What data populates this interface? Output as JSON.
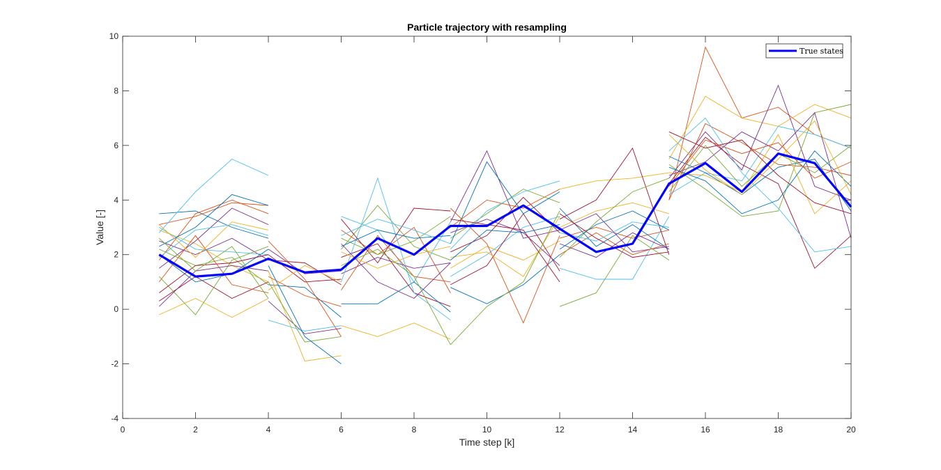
{
  "chart_data": {
    "type": "line",
    "title": "Particle trajectory with resampling",
    "xlabel": "Time step [k]",
    "ylabel": "Value [-]",
    "xlim": [
      0,
      20
    ],
    "ylim": [
      -4,
      10
    ],
    "xticks": [
      0,
      2,
      4,
      6,
      8,
      10,
      12,
      14,
      16,
      18,
      20
    ],
    "yticks": [
      -4,
      -2,
      0,
      2,
      4,
      6,
      8,
      10
    ],
    "grid": false,
    "box": true,
    "legend": {
      "position": "top-right",
      "entries": [
        "True states"
      ]
    },
    "series": [
      {
        "name": "True states",
        "color": "#0000ff",
        "x": [
          1,
          2,
          3,
          4,
          5,
          6,
          7,
          8,
          9,
          10,
          11,
          12,
          13,
          14,
          15,
          16,
          17,
          18,
          19,
          20
        ],
        "y": [
          2.0,
          1.2,
          1.3,
          1.85,
          1.35,
          1.45,
          2.6,
          2.0,
          3.05,
          3.05,
          3.8,
          2.95,
          2.1,
          2.4,
          4.6,
          5.35,
          4.3,
          5.7,
          5.35,
          3.75
        ]
      }
    ],
    "particle_segments": {
      "description_colors": [
        "#0072bd",
        "#d95319",
        "#edb120",
        "#7e2f8e",
        "#77ac30",
        "#4dbeee",
        "#a2142f"
      ],
      "colors": [
        "#0072bd",
        "#d95319",
        "#edb120",
        "#7e2f8e",
        "#77ac30",
        "#4dbeee",
        "#a2142f"
      ],
      "segments": [
        {
          "x": [
            1,
            2,
            3,
            4
          ],
          "paths": [
            [
              3.5,
              3.6,
              3.0,
              2.6
            ],
            [
              3.1,
              3.4,
              3.9,
              3.8
            ],
            [
              2.9,
              2.4,
              1.6,
              1.0
            ],
            [
              1.5,
              2.5,
              3.7,
              3.1
            ],
            [
              2.2,
              1.6,
              1.9,
              0.9
            ],
            [
              2.8,
              4.3,
              5.5,
              4.9
            ],
            [
              0.3,
              1.2,
              0.4,
              1.0
            ],
            [
              2.0,
              1.0,
              1.3,
              2.2
            ],
            [
              1.8,
              3.5,
              4.0,
              3.5
            ],
            [
              -0.2,
              0.4,
              -0.3,
              0.4
            ],
            [
              2.5,
              2.0,
              2.6,
              1.8
            ],
            [
              1.2,
              -0.2,
              1.8,
              2.3
            ],
            [
              3.0,
              2.2,
              2.1,
              2.0
            ],
            [
              0.6,
              1.6,
              1.7,
              2.0
            ],
            [
              2.3,
              3.0,
              4.2,
              3.8
            ],
            [
              1.0,
              2.7,
              0.9,
              0.6
            ],
            [
              3.1,
              1.9,
              3.2,
              2.9
            ],
            [
              0.1,
              1.4,
              1.6,
              1.4
            ],
            [
              2.6,
              1.4,
              2.3,
              0.4
            ],
            [
              1.9,
              2.9,
              3.1,
              2.7
            ]
          ]
        },
        {
          "x": [
            4,
            5,
            6
          ],
          "paths": [
            [
              1.8,
              1.7,
              0.9
            ],
            [
              0.9,
              0.8,
              -0.3
            ],
            [
              2.5,
              1.1,
              -1.0
            ],
            [
              1.4,
              -1.9,
              -1.7
            ],
            [
              0.3,
              -0.9,
              -0.7
            ],
            [
              1.0,
              -1.2,
              -1.0
            ],
            [
              -0.4,
              -0.8,
              -0.6
            ],
            [
              2.0,
              1.0,
              1.1
            ],
            [
              1.6,
              -1.0,
              -2.0
            ],
            [
              1.2,
              0.5,
              0.1
            ],
            [
              0.7,
              1.6,
              1.0
            ],
            [
              2.2,
              1.3,
              1.4
            ]
          ]
        },
        {
          "x": [
            6,
            7,
            8,
            9
          ],
          "paths": [
            [
              2.2,
              3.8,
              2.3,
              1.8
            ],
            [
              3.4,
              2.9,
              1.0,
              3.2
            ],
            [
              1.9,
              2.4,
              0.6,
              0.1
            ],
            [
              0.2,
              0.2,
              1.0,
              -0.1
            ],
            [
              2.9,
              2.0,
              3.0,
              0.6
            ],
            [
              -0.6,
              -1.0,
              -0.5,
              -1.1
            ],
            [
              1.3,
              1.9,
              1.5,
              1.7
            ],
            [
              2.6,
              2.0,
              2.5,
              3.4
            ],
            [
              1.0,
              4.8,
              0.6,
              -0.4
            ],
            [
              3.3,
              1.7,
              3.7,
              3.6
            ],
            [
              2.3,
              2.9,
              2.6,
              2.7
            ],
            [
              0.7,
              2.7,
              1.2,
              1.0
            ],
            [
              2.1,
              1.5,
              2.0,
              2.3
            ],
            [
              2.4,
              1.0,
              0.4,
              1.7
            ],
            [
              1.6,
              2.2,
              1.2,
              -1.3
            ],
            [
              2.7,
              3.3,
              2.9,
              2.4
            ]
          ]
        },
        {
          "x": [
            9,
            10,
            11,
            12
          ],
          "paths": [
            [
              2.1,
              2.7,
              4.1,
              2.8
            ],
            [
              0.8,
              0.2,
              0.9,
              2.0
            ],
            [
              3.0,
              4.0,
              3.7,
              4.4
            ],
            [
              1.5,
              2.3,
              1.8,
              2.5
            ],
            [
              3.2,
              5.8,
              2.6,
              2.9
            ],
            [
              2.6,
              3.5,
              4.4,
              3.9
            ],
            [
              1.2,
              2.0,
              3.0,
              3.4
            ],
            [
              0.9,
              1.6,
              3.5,
              1.4
            ],
            [
              2.4,
              5.4,
              3.5,
              4.3
            ],
            [
              3.7,
              2.4,
              -0.5,
              2.7
            ],
            [
              1.9,
              2.1,
              1.2,
              3.4
            ],
            [
              2.8,
              3.3,
              2.8,
              1.6
            ],
            [
              -1.3,
              0.1,
              1.0,
              3.6
            ],
            [
              2.2,
              3.6,
              4.3,
              4.7
            ],
            [
              3.3,
              3.1,
              2.9,
              1.0
            ],
            [
              1.8,
              2.9,
              2.8,
              3.1
            ]
          ]
        },
        {
          "x": [
            12,
            13,
            14,
            15
          ],
          "paths": [
            [
              2.6,
              3.0,
              2.6,
              2.9
            ],
            [
              4.4,
              4.7,
              4.8,
              5.0
            ],
            [
              2.9,
              3.5,
              2.1,
              2.3
            ],
            [
              0.1,
              0.6,
              2.7,
              1.8
            ],
            [
              1.5,
              1.1,
              1.1,
              3.4
            ],
            [
              3.3,
              4.0,
              5.9,
              2.0
            ],
            [
              3.7,
              2.3,
              3.1,
              2.2
            ],
            [
              2.0,
              2.8,
              2.0,
              2.4
            ],
            [
              3.0,
              3.6,
              3.9,
              3.5
            ],
            [
              2.4,
              1.9,
              2.8,
              2.2
            ],
            [
              1.9,
              3.2,
              4.3,
              4.8
            ],
            [
              2.8,
              2.5,
              3.2,
              3.0
            ],
            [
              3.5,
              2.6,
              1.9,
              2.1
            ],
            [
              2.2,
              3.1,
              3.6,
              2.9
            ]
          ]
        },
        {
          "x": [
            15,
            16,
            17,
            18,
            19,
            20
          ],
          "paths": [
            [
              4.0,
              9.6,
              7.0,
              7.4,
              6.4,
              5.9
            ],
            [
              5.5,
              7.8,
              7.0,
              6.7,
              7.5,
              7.0
            ],
            [
              4.8,
              6.5,
              5.1,
              8.2,
              4.5,
              4.0
            ],
            [
              5.3,
              4.4,
              3.4,
              3.6,
              7.2,
              7.5
            ],
            [
              4.2,
              5.0,
              4.7,
              6.7,
              6.4,
              5.9
            ],
            [
              4.6,
              6.3,
              5.3,
              4.6,
              1.5,
              2.7
            ],
            [
              5.6,
              5.0,
              4.2,
              5.2,
              5.5,
              3.6
            ],
            [
              4.0,
              6.8,
              6.1,
              5.3,
              5.2,
              4.9
            ],
            [
              5.0,
              4.9,
              4.3,
              6.4,
              3.5,
              4.7
            ],
            [
              4.9,
              5.4,
              6.5,
              5.8,
              7.2,
              2.6
            ],
            [
              4.3,
              6.0,
              4.5,
              5.7,
              5.0,
              6.0
            ],
            [
              5.8,
              7.0,
              5.0,
              3.7,
              2.1,
              2.3
            ],
            [
              6.5,
              5.9,
              6.2,
              4.9,
              3.9,
              3.5
            ],
            [
              5.2,
              4.7,
              3.5,
              4.0,
              5.8,
              4.5
            ],
            [
              4.5,
              6.2,
              5.7,
              6.1,
              4.8,
              5.4
            ],
            [
              6.4,
              5.1,
              4.2,
              5.5,
              6.9,
              4.2
            ]
          ]
        }
      ]
    }
  }
}
